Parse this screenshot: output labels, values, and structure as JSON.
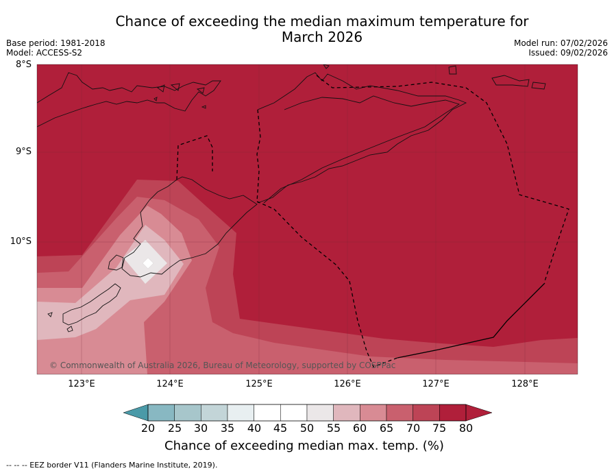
{
  "title_line1": "Chance of exceeding the median maximum temperature for",
  "title_line2": "March 2026",
  "base_period": "Base period: 1981-2018",
  "model": "Model: ACCESS-S2",
  "model_run": "Model run: 07/02/2026",
  "issued": "Issued: 09/02/2026",
  "lat_labels": [
    "8°S",
    "9°S",
    "10°S"
  ],
  "lon_labels": [
    "123°E",
    "124°E",
    "125°E",
    "126°E",
    "127°E",
    "128°E"
  ],
  "copyright": "© Commonwealth of Australia 2026, Bureau of Meteorology, supported by COSPPac",
  "colorbar": {
    "labels": [
      "20",
      "25",
      "30",
      "35",
      "40",
      "45",
      "50",
      "55",
      "60",
      "65",
      "70",
      "75",
      "80"
    ],
    "colors": [
      "#61a8b3",
      "#88b8c2",
      "#a7c6cb",
      "#c3d5d8",
      "#e8eff1",
      "#ffffff",
      "#ffffff",
      "#ebe7e8",
      "#e0b7bd",
      "#d88b94",
      "#c9606e",
      "#bd4456",
      "#b01f3a"
    ],
    "low_extend_color": "#4a9aa8",
    "high_extend_color": "#b01f3a",
    "title": "Chance of exceeding median max. temp. (%)"
  },
  "legend": "--  --  -- EEZ border V11 (Flanders Marine Institute, 2019)."
}
